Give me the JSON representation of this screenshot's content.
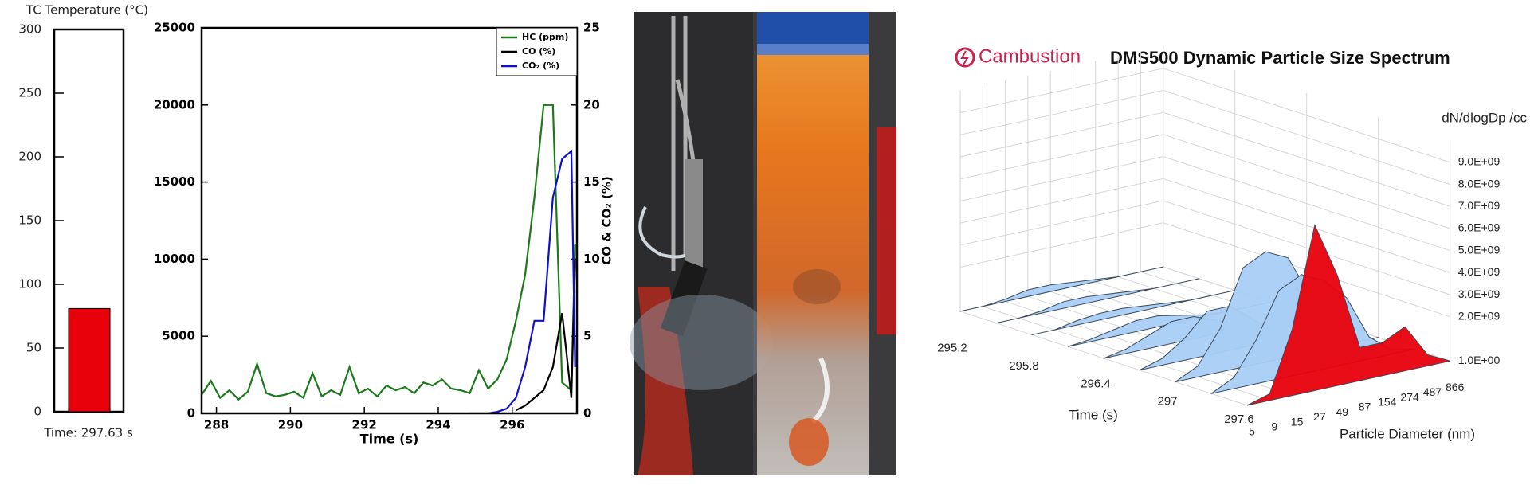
{
  "chart_data": [
    {
      "type": "bar",
      "title": "TC Temperature (°C)",
      "values": [
        81
      ],
      "color": "#e8000b",
      "ylim": [
        0,
        300
      ],
      "yticks": [
        0,
        50,
        100,
        150,
        200,
        250,
        300
      ],
      "caption": "Time: 297.63 s"
    },
    {
      "type": "line",
      "xlabel": "Time (s)",
      "y2label": "CO & CO₂ (%)",
      "x": [
        287.6,
        287.85,
        288.1,
        288.35,
        288.6,
        288.85,
        289.1,
        289.35,
        289.6,
        289.85,
        290.1,
        290.35,
        290.6,
        290.85,
        291.1,
        291.35,
        291.6,
        291.85,
        292.1,
        292.35,
        292.6,
        292.85,
        293.1,
        293.35,
        293.6,
        293.85,
        294.1,
        294.35,
        294.6,
        294.85,
        295.1,
        295.35,
        295.6,
        295.85,
        296.1,
        296.35,
        296.6,
        296.85,
        297.1,
        297.35,
        297.6,
        297.7
      ],
      "xlim": [
        287.6,
        297.75
      ],
      "xticks": [
        288,
        290,
        292,
        294,
        296
      ],
      "ylim": [
        0,
        25000
      ],
      "yticks": [
        0,
        5000,
        10000,
        15000,
        20000,
        25000
      ],
      "y2lim": [
        0,
        25
      ],
      "y2ticks": [
        0,
        5,
        10,
        15,
        20,
        25
      ],
      "legend": "upper right",
      "series": [
        {
          "name": "HC (ppm)",
          "color": "#1a7a1a",
          "values": [
            1200,
            2100,
            1000,
            1500,
            900,
            1400,
            3200,
            1300,
            1100,
            1200,
            1400,
            1000,
            2600,
            1100,
            1500,
            1200,
            3000,
            1300,
            1600,
            1100,
            1800,
            1500,
            1700,
            1300,
            2000,
            1800,
            2200,
            1600,
            1500,
            1300,
            2800,
            1600,
            2200,
            3500,
            6000,
            9000,
            14000,
            20000,
            20000,
            2000,
            1500,
            11000
          ]
        },
        {
          "name": "CO (%)",
          "color": "#000000",
          "axis": "y2",
          "values": [
            null,
            null,
            null,
            null,
            null,
            null,
            null,
            null,
            null,
            null,
            null,
            null,
            null,
            null,
            null,
            null,
            null,
            null,
            null,
            null,
            null,
            null,
            null,
            null,
            null,
            null,
            null,
            null,
            null,
            null,
            null,
            null,
            null,
            null,
            0.2,
            0.5,
            1,
            1.5,
            3,
            6.5,
            1,
            10
          ]
        },
        {
          "name": "CO₂ (%)",
          "color": "#1010c8",
          "axis": "y2",
          "values": [
            null,
            null,
            null,
            null,
            null,
            null,
            null,
            null,
            null,
            null,
            null,
            null,
            null,
            null,
            null,
            null,
            null,
            null,
            null,
            null,
            null,
            null,
            null,
            null,
            null,
            null,
            null,
            null,
            null,
            0,
            0,
            0,
            0.1,
            0.3,
            1,
            3,
            6,
            6,
            14,
            16.5,
            17,
            3
          ]
        }
      ]
    },
    {
      "type": "surface3d",
      "brand": "Cambustion",
      "title": "DMS500 Dynamic Particle Size Spectrum",
      "zlabel": "dN/dlogDp /cc",
      "xlabel": "Time (s)",
      "ylabel": "Particle Diameter (nm)",
      "x": [
        295.2,
        295.5,
        295.8,
        296.1,
        296.4,
        296.7,
        297.0,
        297.3,
        297.6
      ],
      "xticks": [
        295.2,
        295.8,
        296.4,
        297,
        297.6
      ],
      "categories": [
        5,
        9,
        15,
        27,
        49,
        87,
        154,
        274,
        487,
        866
      ],
      "zlim": [
        0,
        10000000000
      ],
      "zticks": [
        {
          "value": 1,
          "label": "1.0E+00"
        },
        {
          "value": 2000000000,
          "label": "2.0E+09"
        },
        {
          "value": 3000000000,
          "label": "3.0E+09"
        },
        {
          "value": 4000000000,
          "label": "4.0E+09"
        },
        {
          "value": 5000000000,
          "label": "5.0E+09"
        },
        {
          "value": 6000000000,
          "label": "6.0E+09"
        },
        {
          "value": 7000000000,
          "label": "7.0E+09"
        },
        {
          "value": 8000000000,
          "label": "8.0E+09"
        },
        {
          "value": 9000000000,
          "label": "9.0E+09"
        }
      ],
      "slices": [
        {
          "color": "#a8cdf5",
          "values": [
            0,
            0,
            100000000,
            300000000,
            300000000,
            200000000,
            100000000,
            0,
            0,
            0
          ]
        },
        {
          "color": "#a8cdf5",
          "values": [
            0,
            0,
            100000000,
            300000000,
            300000000,
            200000000,
            100000000,
            0,
            0,
            0
          ]
        },
        {
          "color": "#a8cdf5",
          "values": [
            0,
            0,
            200000000,
            300000000,
            300000000,
            200000000,
            100000000,
            0,
            0,
            0
          ]
        },
        {
          "color": "#a8cdf5",
          "values": [
            0,
            100000000,
            300000000,
            500000000,
            500000000,
            300000000,
            100000000,
            0,
            0,
            0
          ]
        },
        {
          "color": "#a8cdf5",
          "values": [
            0,
            200000000,
            600000000,
            1000000000,
            1000000000,
            600000000,
            300000000,
            0,
            0,
            0
          ]
        },
        {
          "color": "#a8cdf5",
          "values": [
            0,
            300000000,
            1000000000,
            2000000000,
            2000000000,
            1200000000,
            400000000,
            100000000,
            0,
            0
          ]
        },
        {
          "color": "#a8cdf5",
          "values": [
            0,
            500000000,
            2000000000,
            4500000000,
            5000000000,
            4500000000,
            2500000000,
            600000000,
            0,
            0
          ]
        },
        {
          "color": "#a8cdf5",
          "values": [
            0,
            500000000,
            2000000000,
            4000000000,
            4500000000,
            4000000000,
            3000000000,
            1000000000,
            200000000,
            0
          ]
        },
        {
          "color": "#e8000b",
          "values": [
            0,
            300000000,
            3000000000,
            7500000000,
            5000000000,
            1500000000,
            1500000000,
            2000000000,
            500000000,
            0
          ]
        }
      ]
    }
  ]
}
